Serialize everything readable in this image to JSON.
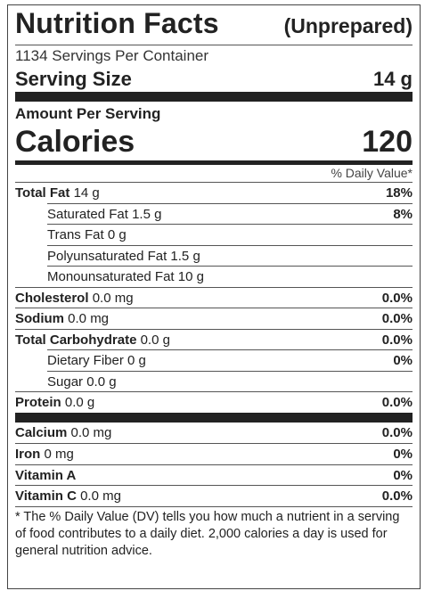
{
  "header": {
    "title": "Nutrition Facts",
    "state": "(Unprepared)",
    "servings_per_container": "1134 Servings Per Container",
    "serving_size_label": "Serving Size",
    "serving_size_value": "14 g"
  },
  "amount_per_serving": "Amount Per Serving",
  "calories": {
    "label": "Calories",
    "value": "120"
  },
  "daily_value_header": "% Daily Value*",
  "nutrients": [
    {
      "name": "Total Fat",
      "amount": "14 g",
      "dv": "18%"
    },
    {
      "name": "Saturated Fat",
      "amount": "1.5 g",
      "dv": "8%"
    },
    {
      "name": "Trans Fat",
      "amount": "0 g",
      "dv": ""
    },
    {
      "name": "Polyunsaturated Fat",
      "amount": "1.5 g",
      "dv": ""
    },
    {
      "name": "Monounsaturated Fat",
      "amount": "10 g",
      "dv": ""
    },
    {
      "name": "Cholesterol",
      "amount": "0.0 mg",
      "dv": "0.0%"
    },
    {
      "name": "Sodium",
      "amount": "0.0 mg",
      "dv": "0.0%"
    },
    {
      "name": "Total Carbohydrate",
      "amount": "0.0 g",
      "dv": "0.0%"
    },
    {
      "name": "Dietary Fiber",
      "amount": "0 g",
      "dv": "0%"
    },
    {
      "name": "Sugar",
      "amount": "0.0 g",
      "dv": ""
    },
    {
      "name": "Protein",
      "amount": "0.0 g",
      "dv": "0.0%"
    }
  ],
  "vitamins": [
    {
      "name": "Calcium",
      "amount": "0.0 mg",
      "dv": "0.0%"
    },
    {
      "name": "Iron",
      "amount": "0 mg",
      "dv": "0%"
    },
    {
      "name": "Vitamin A",
      "amount": "",
      "dv": "0%"
    },
    {
      "name": "Vitamin C",
      "amount": "0.0 mg",
      "dv": "0.0%"
    }
  ],
  "footnote": "* The % Daily Value (DV) tells you how much a nutrient in a serving of food contributes to a daily diet. 2,000 calories a day is used for general nutrition advice."
}
